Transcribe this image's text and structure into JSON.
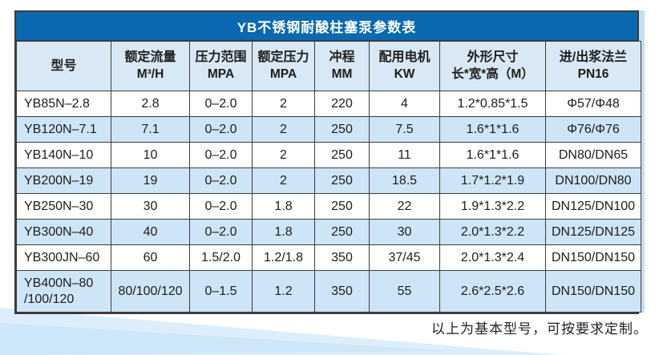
{
  "page": {
    "title": "YB不锈钢耐酸柱塞泵参数表",
    "footer_note": "以上为基本型号，可按要求定制。"
  },
  "colors": {
    "title_bar": "#0a69b0",
    "header_bg": "#d8e8f4",
    "row_alt_bg": "#cde5f6",
    "row_bg": "#ffffff",
    "border": "#3c3c3c",
    "text": "#1d1d1d",
    "swoosh_light": "#dceefb",
    "swoosh_deep": "#cde6f8",
    "right_strip": "#c6def0"
  },
  "table": {
    "headers": [
      {
        "line1": "型号",
        "line2": ""
      },
      {
        "line1": "额定流量",
        "line2": "M³/H"
      },
      {
        "line1": "压力范围",
        "line2": "MPA"
      },
      {
        "line1": "额定压力",
        "line2": "MPA"
      },
      {
        "line1": "冲程",
        "line2": "MM"
      },
      {
        "line1": "配用电机",
        "line2": "KW"
      },
      {
        "line1": "外形尺寸",
        "line2": "长*宽*高（M）"
      },
      {
        "line1": "进/出浆法兰",
        "line2": "PN16"
      }
    ],
    "rows": [
      [
        "YB85N–2.8",
        "2.8",
        "0–2.0",
        "2",
        "220",
        "4",
        "1.2*0.85*1.5",
        "Φ57/Φ48"
      ],
      [
        "YB120N–7.1",
        "7.1",
        "0–2.0",
        "2",
        "250",
        "7.5",
        "1.6*1*1.6",
        "Φ76/Φ76"
      ],
      [
        "YB140N–10",
        "10",
        "0–2.0",
        "2",
        "250",
        "11",
        "1.6*1*1.6",
        "DN80/DN65"
      ],
      [
        "YB200N–19",
        "19",
        "0–2.0",
        "2",
        "250",
        "18.5",
        "1.7*1.2*1.9",
        "DN100/DN80"
      ],
      [
        "YB250N–30",
        "30",
        "0–2.0",
        "1.8",
        "250",
        "22",
        "1.9*1.3*2.2",
        "DN125/DN100"
      ],
      [
        "YB300N–40",
        "40",
        "0–2.0",
        "1.8",
        "250",
        "30",
        "2.0*1.3*2.2",
        "DN125/DN125"
      ],
      [
        "YB300JN–60",
        "60",
        "1.5/2.0",
        "1.2/1.8",
        "350",
        "37/45",
        "2.0*1.3*2.4",
        "DN150/DN150"
      ],
      [
        "YB400N–80\n/100/120",
        "80/100/120",
        "0–1.5",
        "1.2",
        "350",
        "55",
        "2.6*2.5*2.6",
        "DN150/DN150"
      ]
    ]
  }
}
